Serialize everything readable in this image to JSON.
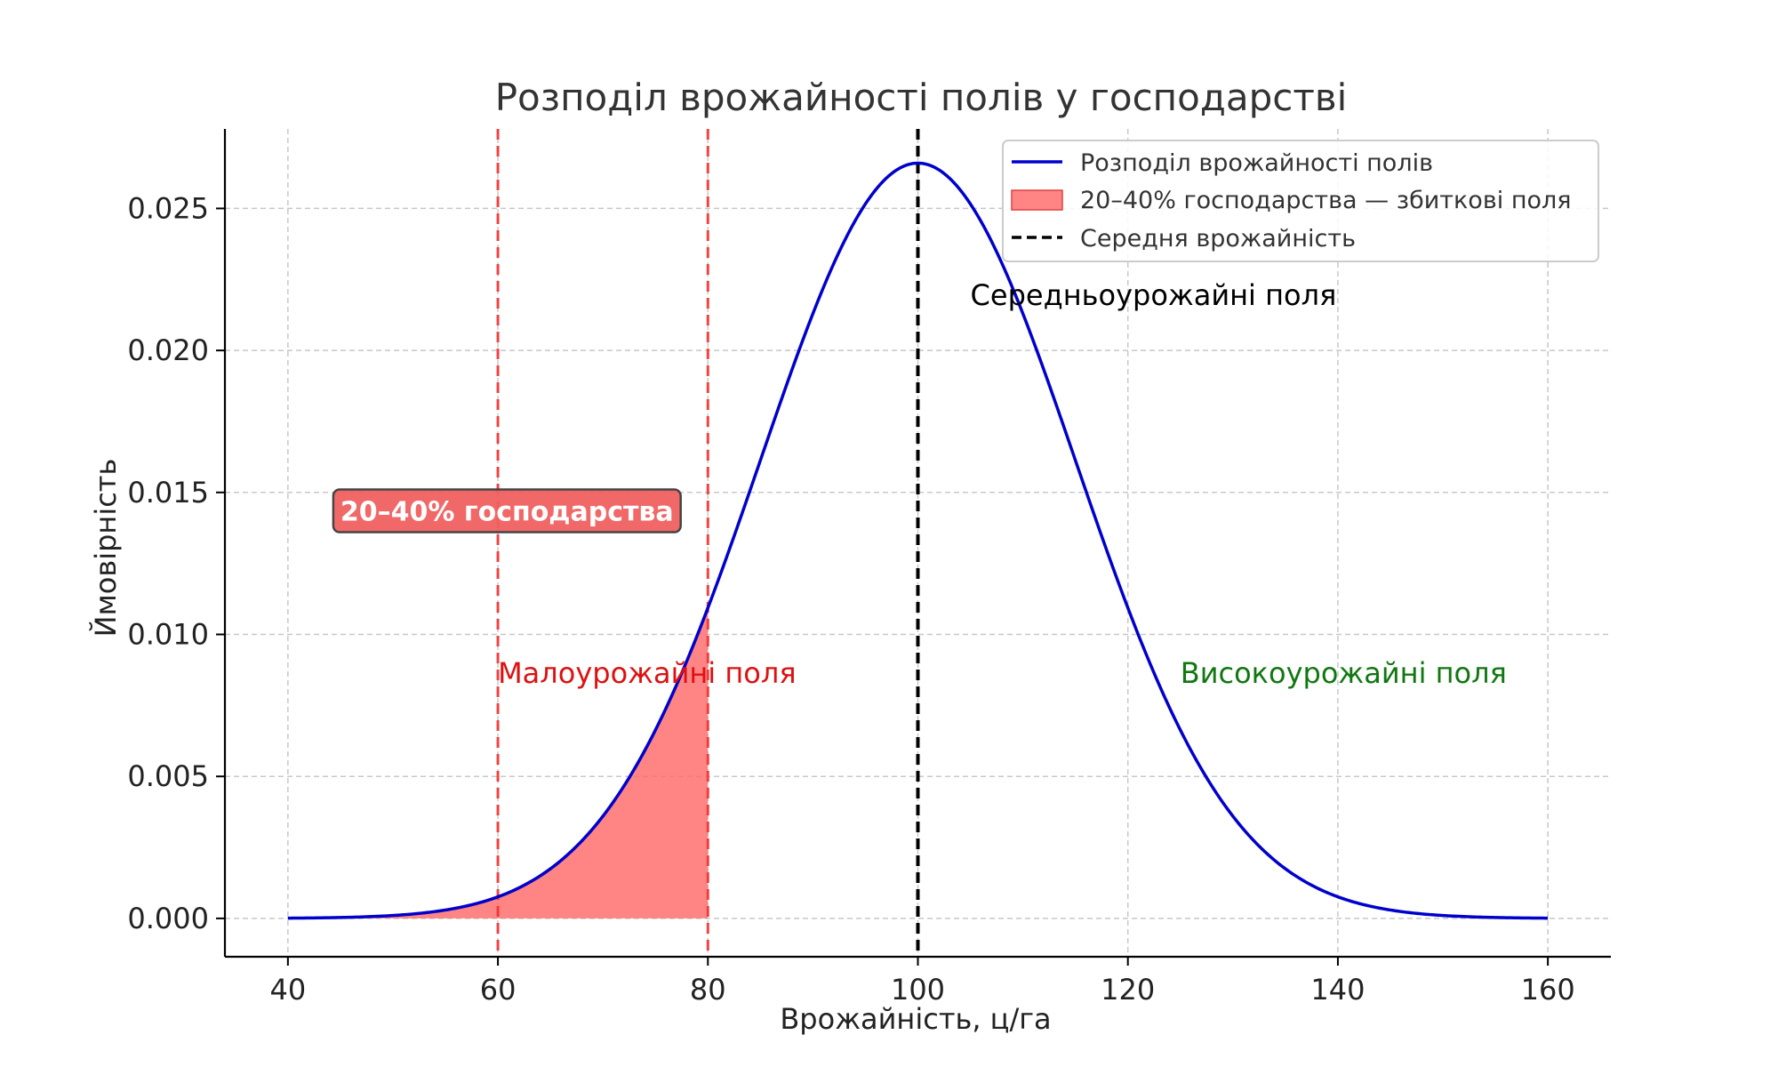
{
  "chart_data": {
    "type": "area",
    "title": "Розподіл врожайності полів у господарстві",
    "xlabel": "Врожайність, ц/га",
    "ylabel": "Ймовірність",
    "xlim": [
      34,
      166
    ],
    "ylim": [
      -0.00135,
      0.0278
    ],
    "xticks": [
      40,
      60,
      80,
      100,
      120,
      140,
      160
    ],
    "xtick_labels": [
      "40",
      "60",
      "80",
      "100",
      "120",
      "140",
      "160"
    ],
    "yticks": [
      0.0,
      0.005,
      0.01,
      0.015,
      0.02,
      0.025
    ],
    "ytick_labels": [
      "0.000",
      "0.005",
      "0.010",
      "0.015",
      "0.020",
      "0.025"
    ],
    "grid": true,
    "legend_position": "top-right",
    "series": [
      {
        "name": "Розподіл врожайності полів",
        "kind": "line",
        "color": "#0000cc",
        "distribution": "normal",
        "mean": 100,
        "std": 15,
        "x_range": [
          40,
          160
        ]
      }
    ],
    "shaded_region": {
      "name": "20–40% господарства — збиткові поля",
      "x_range": [
        40,
        80
      ],
      "color": "#ff6666"
    },
    "vertical_lines": [
      {
        "x": 60,
        "color": "#ee3333",
        "style": "dashed"
      },
      {
        "x": 80,
        "color": "#ee3333",
        "style": "dashed"
      },
      {
        "x": 100,
        "color": "#000000",
        "style": "dashed",
        "name": "Середня врожайність"
      }
    ],
    "annotations": [
      {
        "text": "20–40% господарства",
        "x": 45,
        "y": 0.0136,
        "style": "boxed",
        "color": "#ffffff",
        "box_color": "#f06060"
      },
      {
        "text": "Малоурожайні поля",
        "x": 60,
        "y": 0.0083,
        "color": "#dd1111"
      },
      {
        "text": "Середньоурожайні поля",
        "x": 105,
        "y": 0.0216,
        "color": "#000000"
      },
      {
        "text": "Високоурожайні поля",
        "x": 125,
        "y": 0.0083,
        "color": "#117711"
      }
    ]
  }
}
